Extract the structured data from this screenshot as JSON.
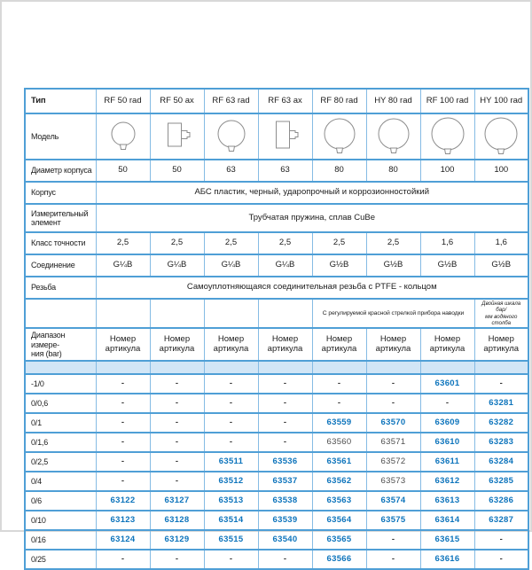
{
  "table": {
    "type_label": "Тип",
    "types": [
      "RF 50 rad",
      "RF 50 ax",
      "RF 63 rad",
      "RF 63 ax",
      "RF 80 rad",
      "HY 80 rad",
      "RF 100 rad",
      "HY 100 rad"
    ],
    "model_label": "Модель",
    "model_icons": [
      "gauge-radial",
      "gauge-axial",
      "gauge-radial",
      "gauge-axial",
      "gauge-radial",
      "gauge-radial",
      "gauge-radial",
      "gauge-radial"
    ],
    "diameter_label": "Диаметр корпуса",
    "diameter_values": [
      "50",
      "50",
      "63",
      "63",
      "80",
      "80",
      "100",
      "100"
    ],
    "body_label": "Корпус",
    "body_value": "АБС пластик, черный, ударопрочный и коррозионностойкий",
    "element_label": "Измерительный элемент",
    "element_value": "Трубчатая пружина, сплав CuBe",
    "accuracy_label": "Класс точности",
    "accuracy_values": [
      "2,5",
      "2,5",
      "2,5",
      "2,5",
      "2,5",
      "2,5",
      "1,6",
      "1,6"
    ],
    "connection_label": "Соединение",
    "connection_values": [
      "G¼B",
      "G¼B",
      "G¼B",
      "G¼B",
      "G½B",
      "G½B",
      "G½B",
      "G½B"
    ],
    "thread_label": "Резьба",
    "thread_value": "Самоуплотняющаяся соединительная резьба с PTFE - кольцом",
    "note_span": "С регулируемой красной стрелкой прибора наводки",
    "note_last_line1": "Двойная шкала бар/",
    "note_last_line2": "мм водяного столба",
    "range_label_line1": "Диапазон измере-",
    "range_label_line2": "ния (bar)",
    "article_header": "Номер артикула",
    "plain_values": [
      "63560",
      "63571",
      "63572",
      "63573"
    ],
    "rows": [
      {
        "range": "-1/0",
        "values": [
          "-",
          "-",
          "-",
          "-",
          "-",
          "-",
          "63601",
          "-"
        ]
      },
      {
        "range": "0/0,6",
        "values": [
          "-",
          "-",
          "-",
          "-",
          "-",
          "-",
          "-",
          "63281"
        ]
      },
      {
        "range": "0/1",
        "values": [
          "-",
          "-",
          "-",
          "-",
          "63559",
          "63570",
          "63609",
          "63282"
        ]
      },
      {
        "range": "0/1,6",
        "values": [
          "-",
          "-",
          "-",
          "-",
          "63560",
          "63571",
          "63610",
          "63283"
        ]
      },
      {
        "range": "0/2,5",
        "values": [
          "-",
          "-",
          "63511",
          "63536",
          "63561",
          "63572",
          "63611",
          "63284"
        ]
      },
      {
        "range": "0/4",
        "values": [
          "-",
          "-",
          "63512",
          "63537",
          "63562",
          "63573",
          "63612",
          "63285"
        ]
      },
      {
        "range": "0/6",
        "values": [
          "63122",
          "63127",
          "63513",
          "63538",
          "63563",
          "63574",
          "63613",
          "63286"
        ]
      },
      {
        "range": "0/10",
        "values": [
          "63123",
          "63128",
          "63514",
          "63539",
          "63564",
          "63575",
          "63614",
          "63287"
        ]
      },
      {
        "range": "0/16",
        "values": [
          "63124",
          "63129",
          "63515",
          "63540",
          "63565",
          "-",
          "63615",
          "-"
        ]
      },
      {
        "range": "0/25",
        "values": [
          "-",
          "-",
          "-",
          "-",
          "63566",
          "-",
          "63616",
          "-"
        ]
      }
    ]
  },
  "colors": {
    "border_horizontal": "#4f9fd6",
    "border_vertical": "#85bbe4",
    "band_fill": "#d2e6f6",
    "article_number_blue": "#0d74bc",
    "plain_number_gray": "#4d4d4d"
  }
}
